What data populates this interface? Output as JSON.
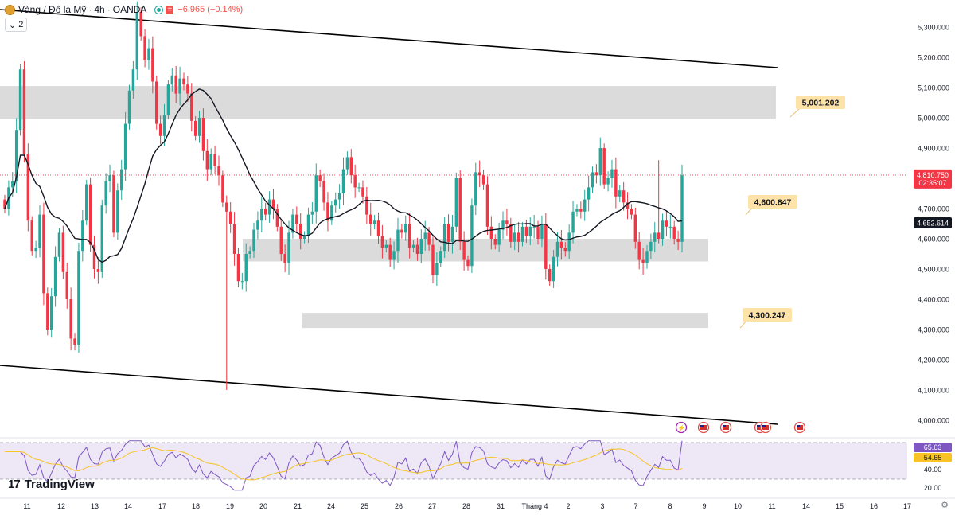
{
  "header": {
    "title": "Vàng / Đô la Mỹ",
    "interval": "4h",
    "source": "OANDA",
    "change": "−6.965 (−0.14%)",
    "collapse_count": "2"
  },
  "branding": {
    "logo_text": "TradingView"
  },
  "colors": {
    "up": "#26a69a",
    "down": "#f23645",
    "ma": "#131722",
    "zone": "#d9d9d9",
    "label_bg": "#fde3a7",
    "rsi_line": "#7e57c2",
    "rsi_ma": "#f7c325",
    "rsi_band": "#ede7f6"
  },
  "chart_data": {
    "type": "candlestick",
    "symbol": "Vàng / Đô la Mỹ",
    "timeframe": "4h",
    "y_axis": {
      "range": [
        3950000,
        5350000
      ],
      "ticks": [
        "5,300.000",
        "5,200.000",
        "5,100.000",
        "5,000.000",
        "4,900.000",
        "4,800.000",
        "4,700.000",
        "4,600.000",
        "4,500.000",
        "4,400.000",
        "4,300.000",
        "4,200.000",
        "4,100.000",
        "4,000.000"
      ]
    },
    "x_axis": {
      "labels": [
        "11",
        "12",
        "13",
        "14",
        "17",
        "18",
        "19",
        "20",
        "21",
        "24",
        "25",
        "26",
        "27",
        "28",
        "31",
        "Tháng 4",
        "2",
        "3",
        "7",
        "8",
        "9",
        "10",
        "11",
        "14",
        "15",
        "16",
        "17"
      ]
    },
    "last_price": {
      "value": "4,810.750",
      "countdown": "02:35:07"
    },
    "ma_value": {
      "value": "4,652.614"
    },
    "zones": [
      {
        "low": 4995000,
        "high": 5105000,
        "label": "5,001.202"
      },
      {
        "low": 4525000,
        "high": 4600000,
        "label": "4,600.847"
      },
      {
        "low": 4305000,
        "high": 4355000,
        "label": "4,300.247"
      }
    ],
    "candles_close": [
      4700000,
      4770000,
      4790000,
      4960000,
      5160000,
      4880000,
      4660000,
      4560000,
      4570000,
      4680000,
      4420000,
      4300000,
      4410000,
      4540000,
      4620000,
      4490000,
      4400000,
      4270000,
      4250000,
      4560000,
      4660000,
      4780000,
      4580000,
      4500000,
      4490000,
      4710000,
      4790000,
      4810000,
      4620000,
      4760000,
      4830000,
      4980000,
      5090000,
      5160000,
      5350000,
      5270000,
      5190000,
      5230000,
      5120000,
      4980000,
      4940000,
      5010000,
      5110000,
      5140000,
      5080000,
      5130000,
      5110000,
      5080000,
      4990000,
      4940000,
      5000000,
      4890000,
      4830000,
      4880000,
      4840000,
      4810000,
      4720000,
      4690000,
      4650000,
      4550000,
      4460000,
      4460000,
      4550000,
      4560000,
      4630000,
      4660000,
      4700000,
      4680000,
      4730000,
      4700000,
      4640000,
      4550000,
      4520000,
      4620000,
      4680000,
      4650000,
      4600000,
      4610000,
      4680000,
      4690000,
      4810000,
      4790000,
      4720000,
      4660000,
      4710000,
      4730000,
      4750000,
      4830000,
      4870000,
      4810000,
      4770000,
      4770000,
      4740000,
      4680000,
      4650000,
      4660000,
      4610000,
      4570000,
      4580000,
      4530000,
      4560000,
      4630000,
      4620000,
      4650000,
      4570000,
      4580000,
      4550000,
      4600000,
      4620000,
      4580000,
      4480000,
      4520000,
      4560000,
      4650000,
      4590000,
      4640000,
      4800000,
      4590000,
      4530000,
      4510000,
      4710000,
      4820000,
      4810000,
      4780000,
      4640000,
      4600000,
      4580000,
      4630000,
      4660000,
      4650000,
      4590000,
      4620000,
      4590000,
      4640000,
      4610000,
      4640000,
      4640000,
      4600000,
      4650000,
      4500000,
      4460000,
      4540000,
      4590000,
      4570000,
      4560000,
      4620000,
      4690000,
      4700000,
      4690000,
      4730000,
      4770000,
      4820000,
      4810000,
      4900000,
      4780000,
      4800000,
      4830000,
      4740000,
      4760000,
      4720000,
      4700000,
      4680000,
      4590000,
      4530000,
      4520000,
      4560000,
      4590000,
      4620000,
      4600000,
      4660000,
      4640000,
      4640000,
      4600000,
      4590000,
      4810000
    ],
    "series": [
      {
        "name": "MA",
        "current": "4,652.614"
      }
    ],
    "rsi": {
      "ticks": [
        "40.00",
        "20.00"
      ],
      "current": "65.63",
      "ma_current": "54.65",
      "band": [
        30,
        70
      ]
    },
    "event_icons": [
      "lightning-icon",
      "us-flag-icon",
      "us-flag-icon",
      "us-flag-icon",
      "us-flag-icon",
      "us-flag-icon"
    ]
  }
}
